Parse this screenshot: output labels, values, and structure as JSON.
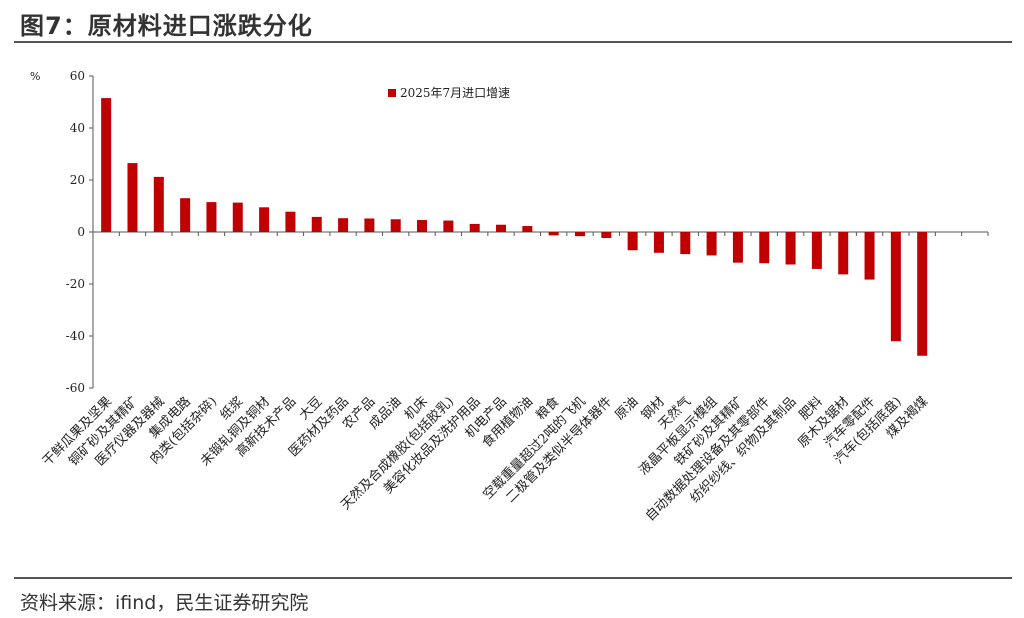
{
  "figure_title": "图7：原材料进口涨跌分化",
  "source": "资料来源：ifind，民生证券研究院",
  "colors": {
    "bar": "#c00000",
    "axis": "#555555",
    "rule": "#555555"
  },
  "chart_data": {
    "type": "bar",
    "title": "",
    "ylabel": "%",
    "xlabel": "",
    "ylim": [
      -60,
      60
    ],
    "yticks": [
      60,
      40,
      20,
      0,
      -20,
      -40,
      -60
    ],
    "grid": false,
    "legend": {
      "position": "top-center",
      "entries": [
        "2025年7月进口增速"
      ]
    },
    "series": [
      {
        "name": "2025年7月进口增速",
        "values": [
          51.5,
          26.5,
          21.2,
          13.0,
          11.5,
          11.3,
          9.5,
          7.8,
          5.8,
          5.3,
          5.2,
          4.9,
          4.6,
          4.4,
          3.1,
          2.8,
          2.3,
          -1.3,
          -1.6,
          -2.3,
          -7.0,
          -8.0,
          -8.5,
          -9.0,
          -11.8,
          -12.0,
          -12.5,
          -14.2,
          -16.3,
          -18.3,
          -42.0,
          -47.6
        ]
      }
    ],
    "categories": [
      "干鲜瓜果及坚果",
      "铜矿砂及其精矿",
      "医疗仪器及器械",
      "集成电路",
      "肉类(包括杂碎)",
      "纸浆",
      "未锻轧铜及铜材",
      "高新技术产品",
      "大豆",
      "医药材及药品",
      "农产品",
      "成品油",
      "机床",
      "天然及合成橡胶(包括胶乳)",
      "美容化妆品及洗护用品",
      "机电产品",
      "食用植物油",
      "粮食",
      "空载重量超过2吨的飞机",
      "二极管及类似半导体器件",
      "原油",
      "钢材",
      "天然气",
      "液晶平板显示模组",
      "铁矿砂及其精矿",
      "自动数据处理设备及其零部件",
      "纺织纱线、织物及其制品",
      "肥料",
      "原木及锯材",
      "汽车零配件",
      "汽车(包括底盘)",
      "煤及褐煤"
    ]
  }
}
